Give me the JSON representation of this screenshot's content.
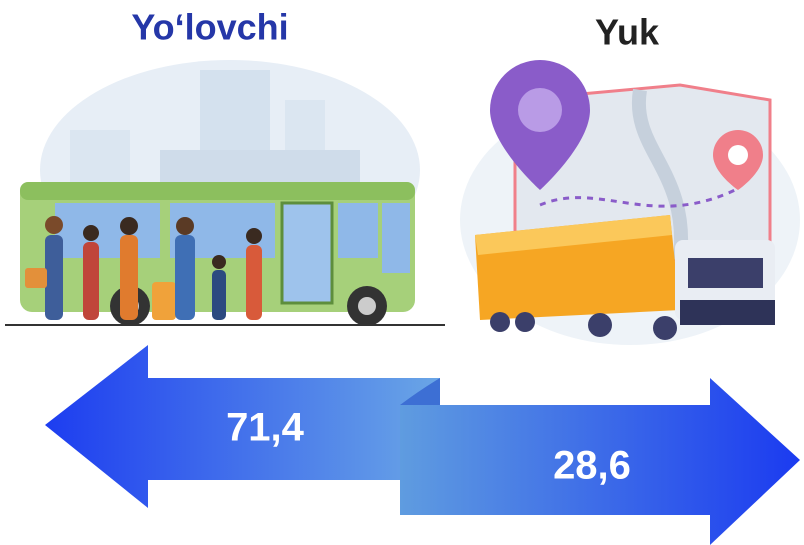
{
  "labels": {
    "left": "Yo‘lovchi",
    "right": "Yuk"
  },
  "arrows": {
    "left": "71,4",
    "right": "28,6"
  }
}
